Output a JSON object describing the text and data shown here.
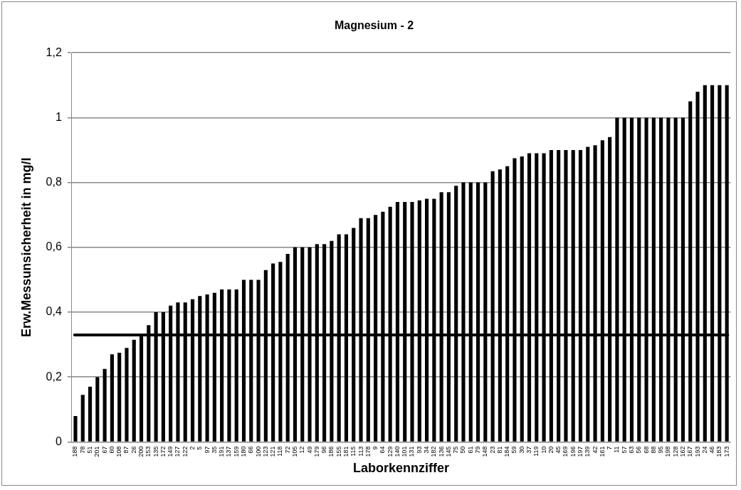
{
  "chart_data": {
    "type": "bar",
    "title": "Magnesium - 2",
    "xlabel": "Laborkennziffer",
    "ylabel": "Erw.Messunsicherheit in mg/l",
    "categories": [
      "188",
      "78",
      "51",
      "201",
      "67",
      "60",
      "108",
      "87",
      "26",
      "200",
      "153",
      "135",
      "172",
      "149",
      "127",
      "122",
      "2",
      "5",
      "97",
      "35",
      "191",
      "137",
      "159",
      "180",
      "66",
      "100",
      "123",
      "121",
      "118",
      "72",
      "105",
      "12",
      "49",
      "179",
      "96",
      "186",
      "155",
      "181",
      "115",
      "113",
      "178",
      "9",
      "64",
      "129",
      "140",
      "101",
      "131",
      "93",
      "34",
      "182",
      "136",
      "145",
      "75",
      "50",
      "61",
      "79",
      "148",
      "23",
      "81",
      "184",
      "59",
      "30",
      "37",
      "119",
      "10",
      "20",
      "45",
      "169",
      "196",
      "197",
      "139",
      "42",
      "161",
      "7",
      "11",
      "57",
      "63",
      "56",
      "68",
      "88",
      "95",
      "198",
      "128",
      "162",
      "167",
      "193",
      "24",
      "46",
      "183",
      "173"
    ],
    "color": "#000000",
    "values": [
      0.08,
      0.145,
      0.17,
      0.2,
      0.225,
      0.27,
      0.275,
      0.29,
      0.315,
      0.33,
      0.36,
      0.4,
      0.4,
      0.42,
      0.43,
      0.43,
      0.44,
      0.45,
      0.455,
      0.46,
      0.47,
      0.47,
      0.47,
      0.5,
      0.5,
      0.5,
      0.53,
      0.55,
      0.555,
      0.58,
      0.6,
      0.6,
      0.6,
      0.61,
      0.61,
      0.62,
      0.64,
      0.64,
      0.66,
      0.69,
      0.69,
      0.7,
      0.71,
      0.725,
      0.74,
      0.74,
      0.74,
      0.745,
      0.75,
      0.75,
      0.77,
      0.77,
      0.79,
      0.8,
      0.8,
      0.8,
      0.8,
      0.835,
      0.84,
      0.85,
      0.875,
      0.88,
      0.89,
      0.89,
      0.89,
      0.9,
      0.9,
      0.9,
      0.9,
      0.9,
      0.91,
      0.915,
      0.93,
      0.94,
      1,
      1,
      1,
      1,
      1,
      1,
      1,
      1,
      1,
      1,
      1.05,
      1.08,
      1.1,
      1.1,
      1.1,
      1.1
    ],
    "ylim": [
      0,
      1.2
    ],
    "yticks": [
      0,
      {
        "value": 0.2,
        "label": "0,2"
      },
      {
        "value": 0.4,
        "label": "0,4"
      },
      {
        "value": 0.6,
        "label": "0,6"
      },
      {
        "value": 0.8,
        "label": "0,8"
      },
      1,
      {
        "value": 1.2,
        "label": "1,2"
      }
    ],
    "grid": "y",
    "legend": false,
    "ref_lines": [
      {
        "axis": "y",
        "value": 0.33,
        "color": "#000000"
      }
    ]
  }
}
